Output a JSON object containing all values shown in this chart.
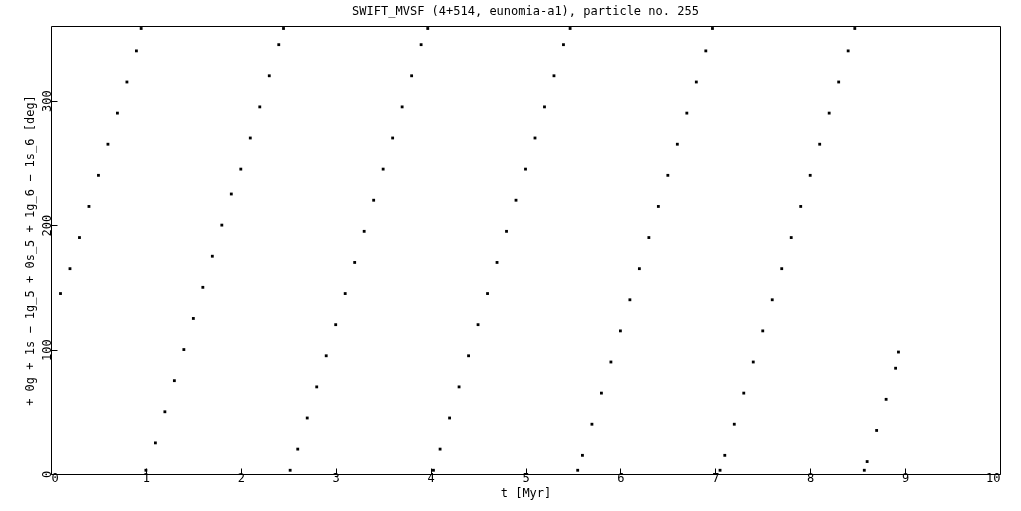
{
  "chart_data": {
    "type": "scatter",
    "title": "SWIFT_MVSF (4+514, eunomia-a1), particle no. 255",
    "xlabel": "t [Myr]",
    "ylabel": "+ 0g + 1s − 1g_5 + 0s_5 + 1g_6 − 1s_6 [deg]",
    "series": [
      {
        "color": "#000000",
        "x": [
          0.1,
          0.2,
          0.3,
          0.4,
          0.5,
          0.6,
          0.7,
          0.8,
          0.9,
          0.95,
          1.0,
          1.1,
          1.2,
          1.3,
          1.4,
          1.5,
          1.6,
          1.7,
          1.8,
          1.9,
          2.0,
          2.1,
          2.2,
          2.3,
          2.4,
          2.45,
          2.52,
          2.6,
          2.7,
          2.8,
          2.9,
          3.0,
          3.1,
          3.2,
          3.3,
          3.4,
          3.5,
          3.6,
          3.7,
          3.8,
          3.9,
          3.97,
          4.03,
          4.1,
          4.2,
          4.3,
          4.4,
          4.5,
          4.6,
          4.7,
          4.8,
          4.9,
          5.0,
          5.1,
          5.2,
          5.3,
          5.4,
          5.47,
          5.55,
          5.6,
          5.7,
          5.8,
          5.9,
          6.0,
          6.1,
          6.2,
          6.3,
          6.4,
          6.5,
          6.6,
          6.7,
          6.8,
          6.9,
          6.97,
          7.05,
          7.1,
          7.2,
          7.3,
          7.4,
          7.5,
          7.6,
          7.7,
          7.8,
          7.9,
          8.0,
          8.1,
          8.2,
          8.3,
          8.4,
          8.47,
          8.57,
          8.6,
          8.7,
          8.8,
          8.9,
          8.93
        ],
        "values": [
          145,
          165,
          190,
          215,
          240,
          265,
          290,
          315,
          340,
          358,
          3,
          25,
          50,
          75,
          100,
          125,
          150,
          175,
          200,
          225,
          245,
          270,
          295,
          320,
          345,
          358,
          3,
          20,
          45,
          70,
          95,
          120,
          145,
          170,
          195,
          220,
          245,
          270,
          295,
          320,
          345,
          358,
          3,
          20,
          45,
          70,
          95,
          120,
          145,
          170,
          195,
          220,
          245,
          270,
          295,
          320,
          345,
          358,
          3,
          15,
          40,
          65,
          90,
          115,
          140,
          165,
          190,
          215,
          240,
          265,
          290,
          315,
          340,
          358,
          3,
          15,
          40,
          65,
          90,
          115,
          140,
          165,
          190,
          215,
          240,
          265,
          290,
          315,
          340,
          358,
          3,
          10,
          35,
          60,
          85,
          98
        ]
      }
    ],
    "marker": "square",
    "xlim": [
      0,
      10
    ],
    "xticks": [
      0,
      1,
      2,
      3,
      4,
      5,
      6,
      7,
      8,
      9,
      10
    ],
    "ylim": [
      0,
      360
    ],
    "yticks": [
      0,
      100,
      200,
      300
    ]
  }
}
